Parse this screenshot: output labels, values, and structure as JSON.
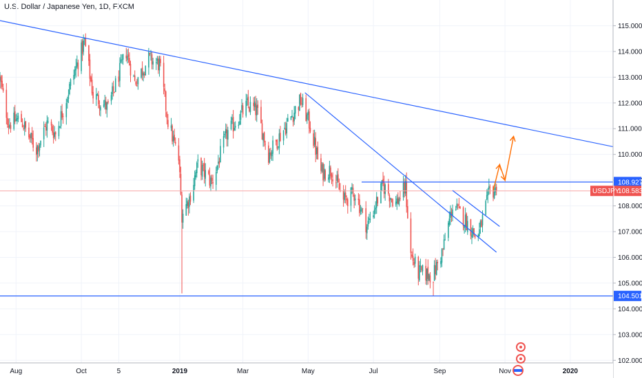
{
  "title": "U.S. Dollar / Japanese Yen, 1D, FXCM",
  "chart_data": {
    "type": "candlestick",
    "title": "U.S. Dollar / Japanese Yen, 1D, FXCM",
    "symbol": "USDJPY",
    "timeframe": "1D",
    "source": "FXCM",
    "y_axis_position": "right",
    "ylim": [
      101.9,
      116.0
    ],
    "x_range": [
      "2018-07-17",
      "2020-02-10"
    ],
    "y_ticks": [
      "102.000",
      "103.000",
      "104.000",
      "105.000",
      "106.000",
      "107.000",
      "108.000",
      "109.000",
      "110.000",
      "111.000",
      "112.000",
      "113.000",
      "114.000",
      "115.000"
    ],
    "x_ticks": [
      {
        "label": "Aug",
        "date": "2018-08-01"
      },
      {
        "label": "Oct",
        "date": "2018-10-01"
      },
      {
        "label": "5",
        "date": "2018-11-05"
      },
      {
        "label": "2019",
        "date": "2019-01-01"
      },
      {
        "label": "Mar",
        "date": "2019-03-01"
      },
      {
        "label": "May",
        "date": "2019-05-01"
      },
      {
        "label": "Jul",
        "date": "2019-07-01"
      },
      {
        "label": "Sep",
        "date": "2019-09-01"
      },
      {
        "label": "Nov",
        "date": "2019-11-01"
      },
      {
        "label": "2020",
        "date": "2020-01-01"
      }
    ],
    "anchors": [
      [
        "2018-07-17",
        112.9
      ],
      [
        "2018-07-25",
        111.2
      ],
      [
        "2018-08-05",
        111.4
      ],
      [
        "2018-08-13",
        110.7
      ],
      [
        "2018-08-20",
        110.2
      ],
      [
        "2018-08-30",
        111.2
      ],
      [
        "2018-09-07",
        110.8
      ],
      [
        "2018-09-20",
        112.6
      ],
      [
        "2018-10-04",
        114.4
      ],
      [
        "2018-10-12",
        112.3
      ],
      [
        "2018-10-26",
        111.8
      ],
      [
        "2018-11-12",
        114.0
      ],
      [
        "2018-11-20",
        112.8
      ],
      [
        "2018-12-03",
        113.7
      ],
      [
        "2018-12-13",
        113.5
      ],
      [
        "2018-12-21",
        111.3
      ],
      [
        "2018-12-31",
        109.8
      ],
      [
        "2019-01-03",
        107.7
      ],
      [
        "2019-01-10",
        108.3
      ],
      [
        "2019-01-18",
        109.6
      ],
      [
        "2019-01-31",
        108.9
      ],
      [
        "2019-02-14",
        110.8
      ],
      [
        "2019-03-05",
        111.9
      ],
      [
        "2019-03-14",
        111.7
      ],
      [
        "2019-03-25",
        110.0
      ],
      [
        "2019-04-10",
        111.1
      ],
      [
        "2019-04-24",
        112.1
      ],
      [
        "2019-05-03",
        111.1
      ],
      [
        "2019-05-13",
        109.3
      ],
      [
        "2019-05-23",
        109.4
      ],
      [
        "2019-06-03",
        108.2
      ],
      [
        "2019-06-14",
        108.5
      ],
      [
        "2019-06-25",
        107.2
      ],
      [
        "2019-07-10",
        108.8
      ],
      [
        "2019-07-22",
        108.1
      ],
      [
        "2019-07-31",
        108.7
      ],
      [
        "2019-08-05",
        106.1
      ],
      [
        "2019-08-12",
        105.4
      ],
      [
        "2019-08-26",
        105.3
      ],
      [
        "2019-09-04",
        106.3
      ],
      [
        "2019-09-13",
        108.0
      ],
      [
        "2019-09-20",
        107.7
      ],
      [
        "2019-10-01",
        107.1
      ],
      [
        "2019-10-04",
        106.8
      ],
      [
        "2019-10-08",
        107.0
      ],
      [
        "2019-10-18",
        108.6
      ],
      [
        "2019-10-24",
        108.583
      ]
    ],
    "extremes": [
      {
        "date": "2019-01-03",
        "low": 104.6
      },
      {
        "date": "2018-10-04",
        "high": 114.55
      },
      {
        "date": "2019-04-24",
        "high": 112.4
      },
      {
        "date": "2019-08-01",
        "high": 109.3
      },
      {
        "date": "2019-08-26",
        "low": 104.501
      },
      {
        "date": "2019-08-13",
        "low": 105.05
      }
    ],
    "drawings": [
      {
        "kind": "trendline",
        "from": [
          "2018-07-17",
          115.2
        ],
        "to": [
          "2020-02-10",
          110.3
        ]
      },
      {
        "kind": "trendline",
        "from": [
          "2019-04-28",
          112.4
        ],
        "to": [
          "2019-10-24",
          106.2
        ]
      },
      {
        "kind": "trendline",
        "from": [
          "2019-09-13",
          108.6
        ],
        "to": [
          "2019-10-27",
          107.2
        ]
      },
      {
        "kind": "horizontal_segment",
        "from": [
          "2019-06-20",
          108.927
        ],
        "to": [
          "2020-02-10",
          108.927
        ]
      },
      {
        "kind": "horizontal_line",
        "price": 104.501
      },
      {
        "kind": "projection_path",
        "points": [
          [
            "2019-10-21",
            108.6
          ],
          [
            "2019-10-27",
            109.6
          ],
          [
            "2019-11-01",
            109.0
          ],
          [
            "2019-11-09",
            110.7
          ]
        ]
      }
    ],
    "price_labels": [
      {
        "text": "108.927",
        "price": 108.927,
        "kind": "level"
      },
      {
        "text": "104.501",
        "price": 104.501,
        "kind": "level"
      },
      {
        "name": "USDJPY",
        "text": "108.583",
        "price": 108.583,
        "kind": "last"
      }
    ],
    "colors": {
      "up": "#26a69a",
      "down": "#ef5350",
      "drawing": "#2962ff",
      "projection": "#ff6d00",
      "last_line": "#f7a6a6",
      "grid": "#f0f3fa",
      "axis_border": "#b2b5be"
    }
  }
}
